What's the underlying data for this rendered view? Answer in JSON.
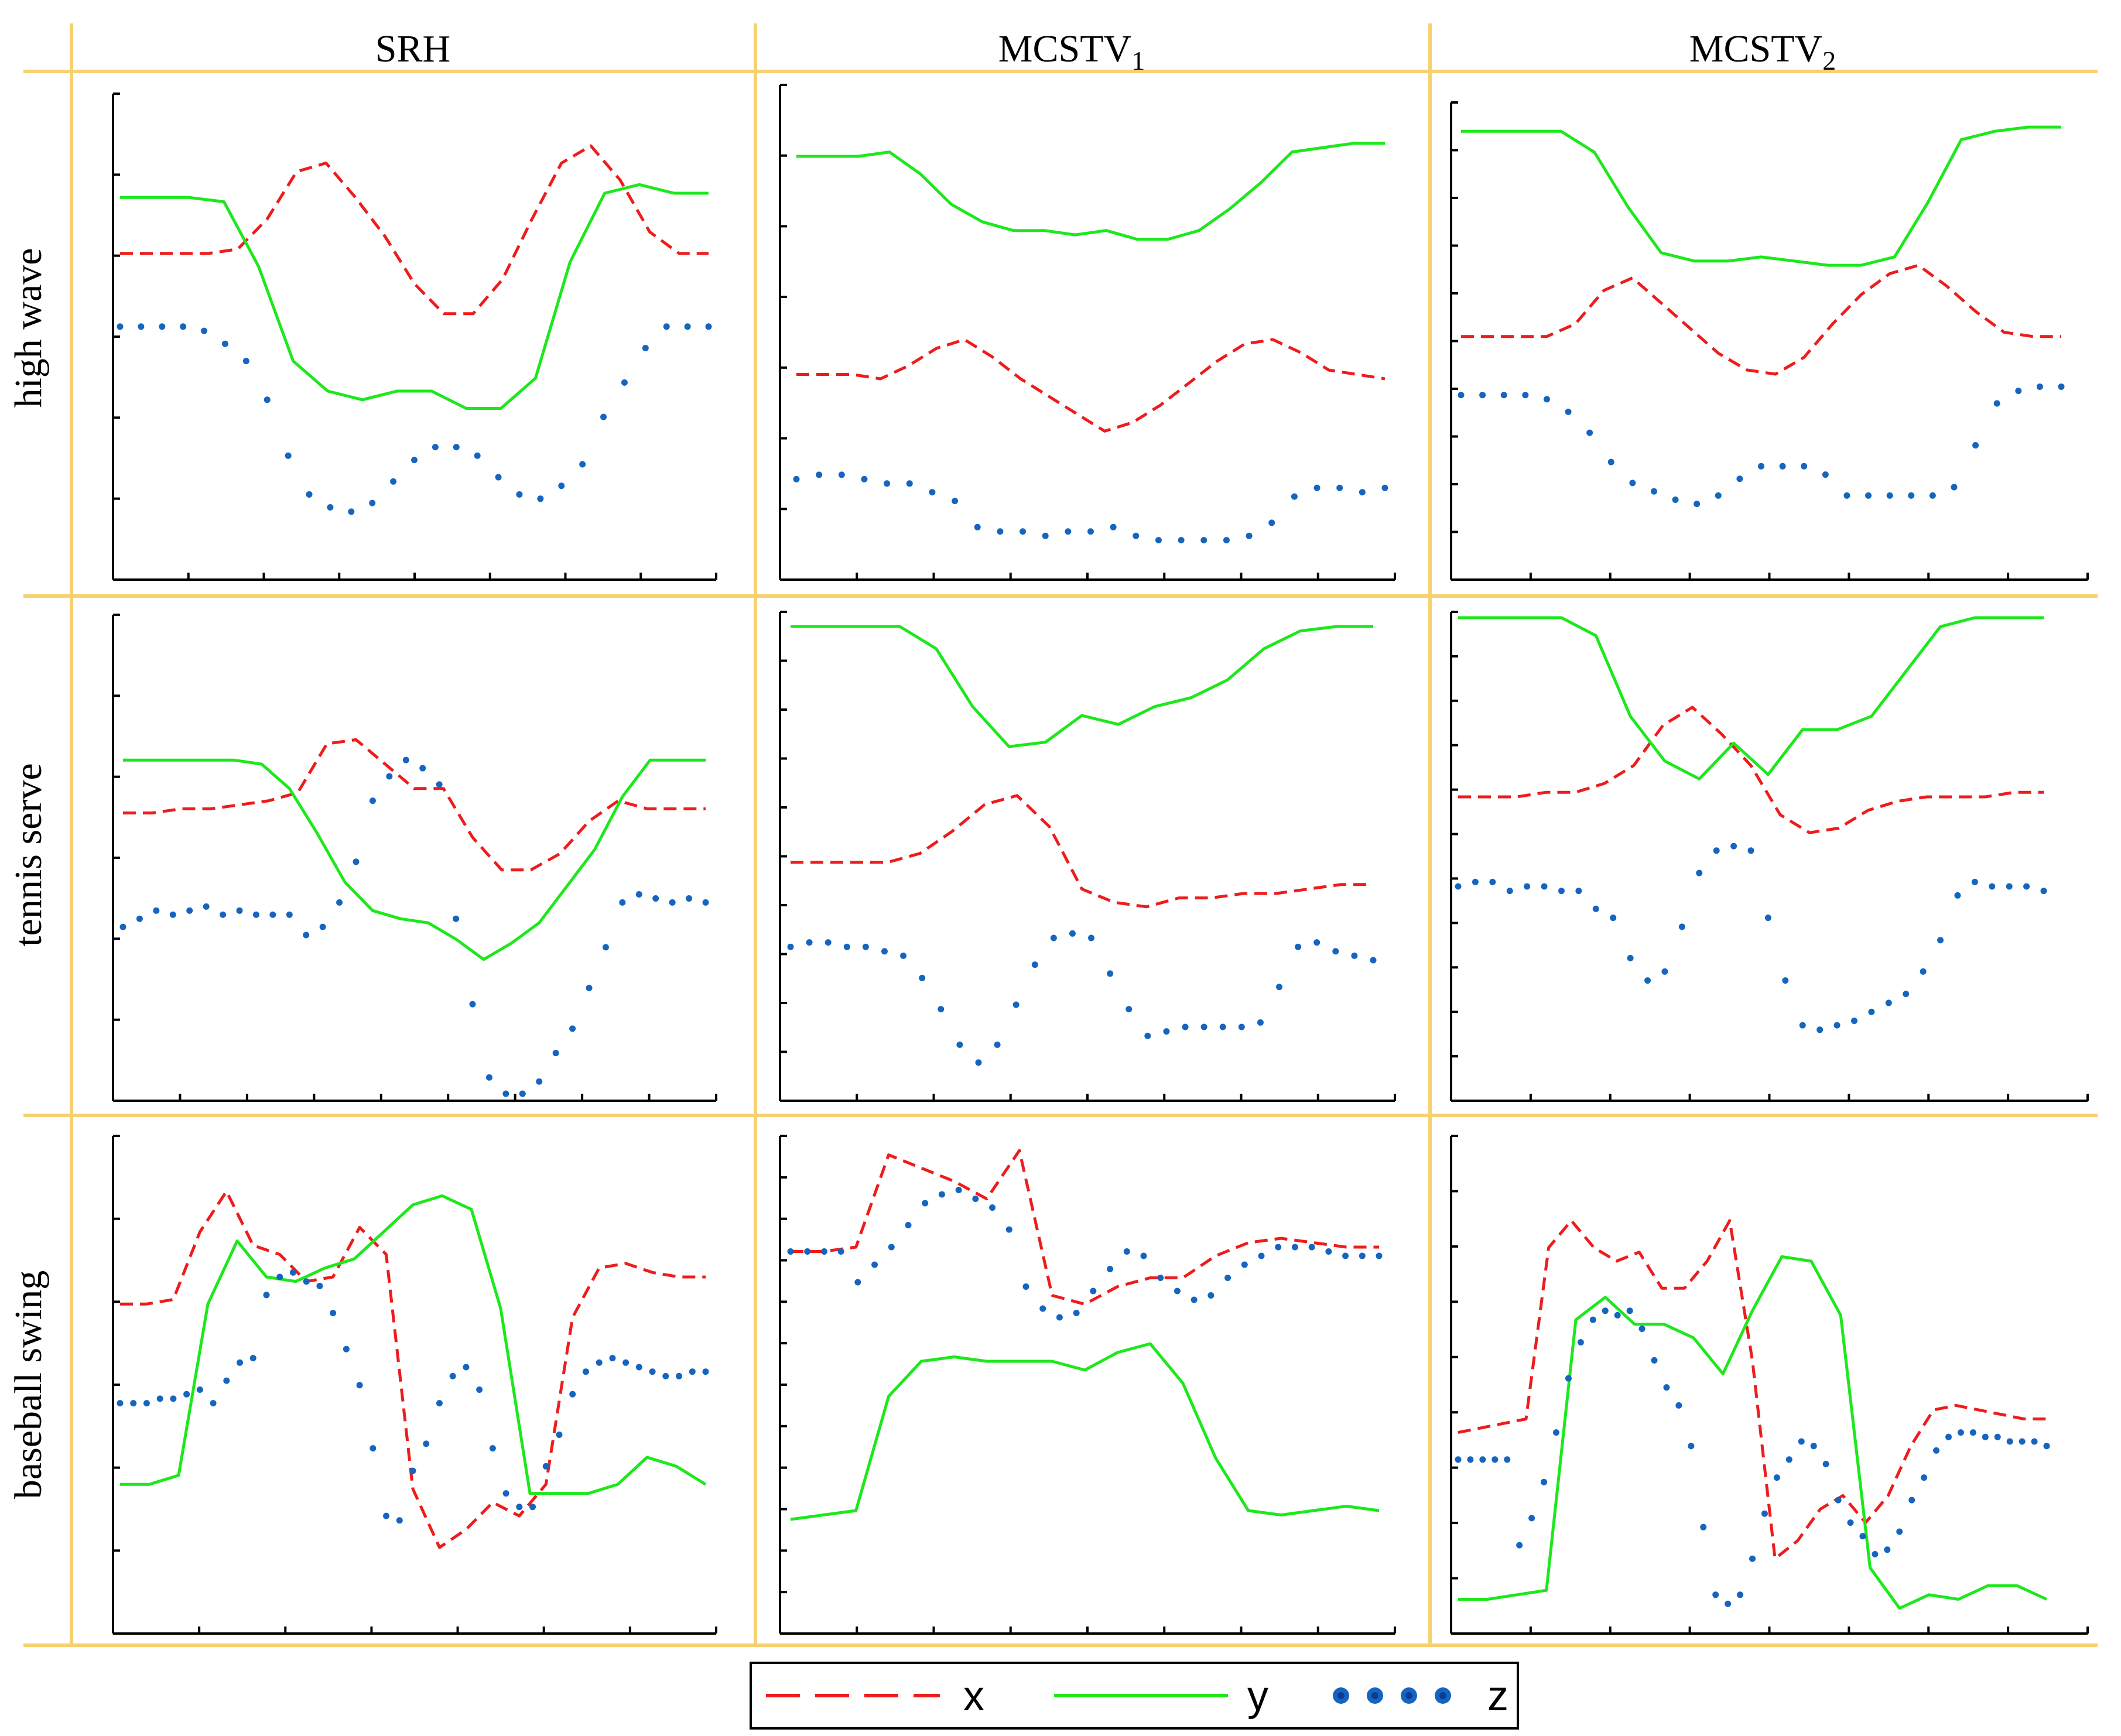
{
  "colors": {
    "grid": "#f7d070",
    "x": "#ee1c1c",
    "y": "#1ce81c",
    "z": "#1565c0",
    "axis": "#000000"
  },
  "columns": [
    "SRH",
    "MCSTV",
    "MCSTV"
  ],
  "column_subscripts": [
    "",
    "1",
    "2"
  ],
  "rows": [
    "high wave",
    "tennis serve",
    "baseball swing"
  ],
  "legend": {
    "x": "x",
    "y": "y",
    "z": "z"
  },
  "chart_data": [
    {
      "type": "line",
      "row": "high wave",
      "column": "SRH",
      "x_ticks": 8,
      "y_ticks": 6,
      "ylim": [
        0,
        100
      ],
      "series": [
        {
          "name": "x",
          "style": "dashed",
          "values": [
            69,
            69,
            69,
            69,
            70,
            77,
            88,
            90,
            82,
            73,
            62,
            55,
            55,
            63,
            77,
            90,
            94,
            86,
            74,
            69,
            69
          ]
        },
        {
          "name": "y",
          "style": "solid",
          "values": [
            82,
            82,
            82,
            81,
            66,
            44,
            37,
            35,
            37,
            37,
            33,
            33,
            40,
            67,
            83,
            85,
            83,
            83
          ]
        },
        {
          "name": "z",
          "style": "dots",
          "values": [
            52,
            52,
            52,
            52,
            51,
            48,
            44,
            35,
            22,
            13,
            10,
            9,
            11,
            16,
            21,
            24,
            24,
            22,
            17,
            13,
            12,
            15,
            20,
            31,
            39,
            47,
            52,
            52,
            52
          ]
        }
      ]
    },
    {
      "type": "line",
      "row": "high wave",
      "column": "MCSTV",
      "x_ticks": 8,
      "y_ticks": 7,
      "ylim": [
        0,
        100
      ],
      "series": [
        {
          "name": "x",
          "style": "dashed",
          "values": [
            41,
            41,
            41,
            40,
            43,
            47,
            49,
            45,
            40,
            36,
            32,
            28,
            30,
            34,
            39,
            44,
            48,
            49,
            46,
            42,
            41,
            40
          ]
        },
        {
          "name": "y",
          "style": "solid",
          "values": [
            91,
            91,
            91,
            92,
            87,
            80,
            76,
            74,
            74,
            73,
            74,
            72,
            72,
            74,
            79,
            85,
            92,
            93,
            94,
            94
          ]
        },
        {
          "name": "z",
          "style": "dots",
          "values": [
            17,
            18,
            18,
            17,
            16,
            16,
            14,
            12,
            6,
            5,
            5,
            4,
            5,
            5,
            6,
            4,
            3,
            3,
            3,
            3,
            4,
            7,
            13,
            15,
            15,
            14,
            15
          ]
        }
      ]
    },
    {
      "type": "line",
      "row": "high wave",
      "column": "MCSTV",
      "x_ticks": 8,
      "y_ticks": 10,
      "ylim": [
        0,
        100
      ],
      "series": [
        {
          "name": "x",
          "style": "dashed",
          "values": [
            49,
            49,
            49,
            49,
            52,
            60,
            63,
            57,
            51,
            45,
            41,
            40,
            44,
            52,
            59,
            64,
            66,
            61,
            55,
            50,
            49,
            49
          ]
        },
        {
          "name": "y",
          "style": "solid",
          "values": [
            98,
            98,
            98,
            98,
            93,
            80,
            69,
            67,
            67,
            68,
            67,
            66,
            66,
            68,
            81,
            96,
            98,
            99,
            99
          ]
        },
        {
          "name": "z",
          "style": "dots",
          "values": [
            35,
            35,
            35,
            35,
            34,
            31,
            26,
            19,
            14,
            12,
            10,
            9,
            11,
            15,
            18,
            18,
            18,
            16,
            11,
            11,
            11,
            11,
            11,
            13,
            23,
            33,
            36,
            37,
            37
          ]
        }
      ]
    },
    {
      "type": "line",
      "row": "tennis serve",
      "column": "SRH",
      "x_ticks": 9,
      "y_ticks": 6,
      "ylim": [
        0,
        100
      ],
      "series": [
        {
          "name": "x",
          "style": "dashed",
          "values": [
            70,
            70,
            71,
            71,
            72,
            73,
            75,
            87,
            88,
            82,
            76,
            76,
            64,
            56,
            56,
            60,
            68,
            73,
            71,
            71,
            71
          ]
        },
        {
          "name": "y",
          "style": "solid",
          "values": [
            83,
            83,
            83,
            83,
            83,
            82,
            76,
            65,
            53,
            46,
            44,
            43,
            39,
            34,
            38,
            43,
            52,
            61,
            74,
            83,
            83,
            83
          ]
        },
        {
          "name": "z",
          "style": "dots",
          "values": [
            42,
            44,
            46,
            45,
            46,
            47,
            45,
            46,
            45,
            45,
            45,
            40,
            42,
            48,
            58,
            73,
            79,
            83,
            81,
            77,
            44,
            23,
            5,
            1,
            1,
            4,
            11,
            17,
            27,
            37,
            48,
            50,
            49,
            48,
            49,
            48
          ]
        }
      ]
    },
    {
      "type": "line",
      "row": "tennis serve",
      "column": "MCSTV",
      "x_ticks": 8,
      "y_ticks": 10,
      "ylim": [
        0,
        100
      ],
      "series": [
        {
          "name": "x",
          "style": "dashed",
          "values": [
            47,
            47,
            47,
            47,
            49,
            54,
            60,
            62,
            55,
            41,
            38,
            37,
            39,
            39,
            40,
            40,
            41,
            42,
            42
          ]
        },
        {
          "name": "y",
          "style": "solid",
          "values": [
            100,
            100,
            100,
            100,
            95,
            82,
            73,
            74,
            80,
            78,
            82,
            84,
            88,
            95,
            99,
            100,
            100
          ]
        },
        {
          "name": "z",
          "style": "dots",
          "values": [
            28,
            29,
            29,
            28,
            28,
            27,
            26,
            21,
            14,
            6,
            2,
            6,
            15,
            24,
            30,
            31,
            30,
            22,
            14,
            8,
            9,
            10,
            10,
            10,
            10,
            11,
            19,
            28,
            29,
            27,
            26,
            25
          ]
        }
      ]
    },
    {
      "type": "line",
      "row": "tennis serve",
      "column": "MCSTV",
      "x_ticks": 8,
      "y_ticks": 11,
      "ylim": [
        0,
        100
      ],
      "series": [
        {
          "name": "x",
          "style": "dashed",
          "values": [
            60,
            60,
            60,
            61,
            61,
            63,
            67,
            76,
            80,
            74,
            67,
            56,
            52,
            53,
            57,
            59,
            60,
            60,
            60,
            61,
            61
          ]
        },
        {
          "name": "y",
          "style": "solid",
          "values": [
            100,
            100,
            100,
            100,
            96,
            78,
            68,
            64,
            72,
            65,
            75,
            75,
            78,
            88,
            98,
            100,
            100,
            100
          ]
        },
        {
          "name": "z",
          "style": "dots",
          "values": [
            40,
            41,
            41,
            39,
            40,
            40,
            39,
            39,
            35,
            33,
            24,
            19,
            21,
            31,
            43,
            48,
            49,
            48,
            33,
            19,
            9,
            8,
            9,
            10,
            12,
            14,
            16,
            21,
            28,
            38,
            41,
            40,
            40,
            40,
            39
          ]
        }
      ]
    },
    {
      "type": "line",
      "row": "baseball swing",
      "column": "SRH",
      "x_ticks": 7,
      "y_ticks": 6,
      "ylim": [
        0,
        100
      ],
      "series": [
        {
          "name": "x",
          "style": "dashed",
          "values": [
            64,
            64,
            65,
            80,
            89,
            77,
            75,
            69,
            70,
            81,
            75,
            23,
            10,
            14,
            20,
            17,
            24,
            61,
            72,
            73,
            71,
            70,
            70
          ]
        },
        {
          "name": "y",
          "style": "solid",
          "values": [
            24,
            24,
            26,
            64,
            78,
            70,
            69,
            72,
            74,
            80,
            86,
            88,
            85,
            63,
            22,
            22,
            22,
            24,
            30,
            28,
            24
          ]
        },
        {
          "name": "z",
          "style": "dots",
          "values": [
            42,
            42,
            42,
            43,
            43,
            44,
            45,
            42,
            47,
            51,
            52,
            66,
            70,
            71,
            69,
            68,
            62,
            54,
            46,
            32,
            17,
            16,
            27,
            33,
            42,
            48,
            50,
            45,
            32,
            22,
            19,
            19,
            28,
            35,
            44,
            49,
            51,
            52,
            51,
            50,
            49,
            48,
            48,
            49,
            49
          ]
        }
      ]
    },
    {
      "type": "line",
      "row": "baseball swing",
      "column": "MCSTV",
      "x_ticks": 8,
      "y_ticks": 12,
      "ylim": [
        0,
        100
      ],
      "series": [
        {
          "name": "x",
          "style": "dashed",
          "values": [
            75,
            75,
            76,
            97,
            94,
            91,
            87,
            98,
            65,
            63,
            67,
            69,
            69,
            74,
            77,
            78,
            77,
            76,
            76
          ]
        },
        {
          "name": "y",
          "style": "solid",
          "values": [
            14,
            15,
            16,
            42,
            50,
            51,
            50,
            50,
            50,
            48,
            52,
            54,
            45,
            28,
            16,
            15,
            16,
            17,
            16
          ]
        },
        {
          "name": "z",
          "style": "dots",
          "values": [
            75,
            75,
            75,
            75,
            68,
            72,
            76,
            81,
            86,
            88,
            89,
            87,
            85,
            80,
            67,
            62,
            60,
            61,
            66,
            71,
            75,
            74,
            69,
            66,
            64,
            65,
            69,
            72,
            74,
            76,
            76,
            76,
            75,
            74,
            74,
            74
          ]
        }
      ]
    },
    {
      "type": "line",
      "row": "baseball swing",
      "column": "MCSTV",
      "x_ticks": 8,
      "y_ticks": 9,
      "ylim": [
        0,
        100
      ],
      "series": [
        {
          "name": "x",
          "style": "dashed",
          "values": [
            42,
            43,
            44,
            45,
            83,
            89,
            83,
            80,
            82,
            74,
            74,
            80,
            89,
            58,
            14,
            18,
            25,
            28,
            22,
            28,
            39,
            47,
            48,
            47,
            46,
            45,
            45
          ]
        },
        {
          "name": "y",
          "style": "solid",
          "values": [
            5,
            5,
            6,
            7,
            67,
            72,
            66,
            66,
            63,
            55,
            69,
            81,
            80,
            68,
            12,
            3,
            6,
            5,
            8,
            8,
            5
          ]
        },
        {
          "name": "z",
          "style": "dots",
          "values": [
            36,
            36,
            36,
            36,
            36,
            17,
            23,
            31,
            42,
            54,
            62,
            67,
            69,
            68,
            69,
            65,
            58,
            52,
            48,
            39,
            21,
            6,
            4,
            6,
            14,
            24,
            32,
            36,
            40,
            39,
            35,
            27,
            22,
            19,
            15,
            16,
            20,
            27,
            32,
            38,
            41,
            42,
            42,
            41,
            41,
            40,
            40,
            40,
            39
          ]
        }
      ]
    }
  ]
}
